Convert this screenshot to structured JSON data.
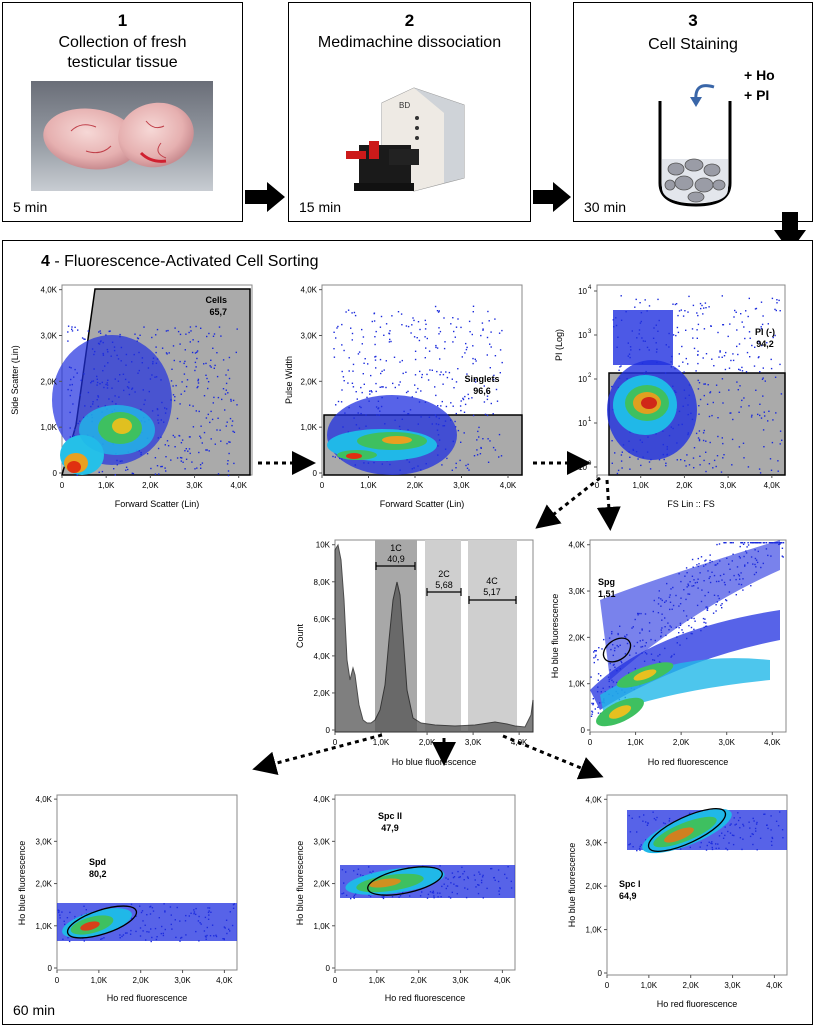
{
  "steps": [
    {
      "num": "1",
      "title_line1": "Collection of fresh",
      "title_line2": "testicular tissue",
      "time": "5 min"
    },
    {
      "num": "2",
      "title_line1": "Medimachine dissociation",
      "title_line2": "",
      "time": "15 min",
      "device_label": "BD"
    },
    {
      "num": "3",
      "title_line1": "Cell Staining",
      "title_line2": "",
      "time": "30 min",
      "reagent1": "+ Ho",
      "reagent2": "+ PI"
    }
  ],
  "facs": {
    "num": "4",
    "title": " - Fluorescence-Activated Cell Sorting",
    "time": "60 min"
  },
  "colors": {
    "gate": "#a8a8a8",
    "dense": "#d83018",
    "mid": "#2ab040",
    "sparse": "#1a2adc"
  },
  "chart_data": [
    {
      "id": "cells",
      "type": "scatter",
      "xlabel": "Forward Scatter (Lin)",
      "ylabel": "Side Scatter (Lin)",
      "xticks": [
        "0",
        "1,0K",
        "2,0K",
        "3,0K",
        "4,0K"
      ],
      "yticks": [
        "0",
        "1,0K",
        "2,0K",
        "3,0K",
        "4,0K"
      ],
      "gate": {
        "name": "Cells",
        "value": "65,7"
      }
    },
    {
      "id": "singlets",
      "type": "scatter",
      "xlabel": "Forward Scatter (Lin)",
      "ylabel": "Pulse Width",
      "xticks": [
        "0",
        "1,0K",
        "2,0K",
        "3,0K",
        "4,0K"
      ],
      "yticks": [
        "0",
        "1,0K",
        "2,0K",
        "3,0K",
        "4,0K"
      ],
      "gate": {
        "name": "Singlets",
        "value": "96,6"
      }
    },
    {
      "id": "pi",
      "type": "scatter",
      "xlabel": "FS Lin :: FS",
      "ylabel": "PI (Log)",
      "xticks": [
        "0",
        "1,0K",
        "2,0K",
        "3,0K",
        "4,0K"
      ],
      "yticks_log": [
        "10",
        "10",
        "10",
        "10",
        "10"
      ],
      "yexp": [
        "0",
        "1",
        "2",
        "3",
        "4"
      ],
      "gate": {
        "name": "PI (-)",
        "value": "94,2"
      }
    },
    {
      "id": "histogram",
      "type": "area",
      "xlabel": "Ho blue fluorescence",
      "ylabel": "Count",
      "xticks": [
        "0",
        "1,0K",
        "2,0K",
        "3,0K",
        "4,0K"
      ],
      "yticks": [
        "0",
        "2,0K",
        "4,0K",
        "6,0K",
        "8,0K",
        "10K"
      ],
      "gates": [
        {
          "name": "1C",
          "value": "40,9"
        },
        {
          "name": "2C",
          "value": "5,68"
        },
        {
          "name": "4C",
          "value": "5,17"
        }
      ]
    },
    {
      "id": "spg",
      "type": "scatter",
      "xlabel": "Ho red fluorescence",
      "ylabel": "Ho blue fluorescence",
      "xticks": [
        "0",
        "1,0K",
        "2,0K",
        "3,0K",
        "4,0K"
      ],
      "yticks": [
        "0",
        "1,0K",
        "2,0K",
        "3,0K",
        "4,0K"
      ],
      "gate": {
        "name": "Spg",
        "value": "1,51"
      }
    },
    {
      "id": "spd",
      "type": "scatter",
      "xlabel": "Ho red fluorescence",
      "ylabel": "Ho blue fluorescence",
      "xticks": [
        "0",
        "1,0K",
        "2,0K",
        "3,0K",
        "4,0K"
      ],
      "yticks": [
        "0",
        "1,0K",
        "2,0K",
        "3,0K",
        "4,0K"
      ],
      "gate": {
        "name": "Spd",
        "value": "80,2"
      }
    },
    {
      "id": "spc2",
      "type": "scatter",
      "xlabel": "Ho red fluorescence",
      "ylabel": "Ho blue fluorescence",
      "xticks": [
        "0",
        "1,0K",
        "2,0K",
        "3,0K",
        "4,0K"
      ],
      "yticks": [
        "0",
        "1,0K",
        "2,0K",
        "3,0K",
        "4,0K"
      ],
      "gate": {
        "name": "Spc II",
        "value": "47,9"
      }
    },
    {
      "id": "spc1",
      "type": "scatter",
      "xlabel": "Ho red fluorescence",
      "ylabel": "Ho blue fluorescence",
      "xticks": [
        "0",
        "1,0K",
        "2,0K",
        "3,0K",
        "4,0K"
      ],
      "yticks": [
        "0",
        "1,0K",
        "2,0K",
        "3,0K",
        "4,0K"
      ],
      "gate": {
        "name": "Spc I",
        "value": "64,9"
      }
    }
  ]
}
